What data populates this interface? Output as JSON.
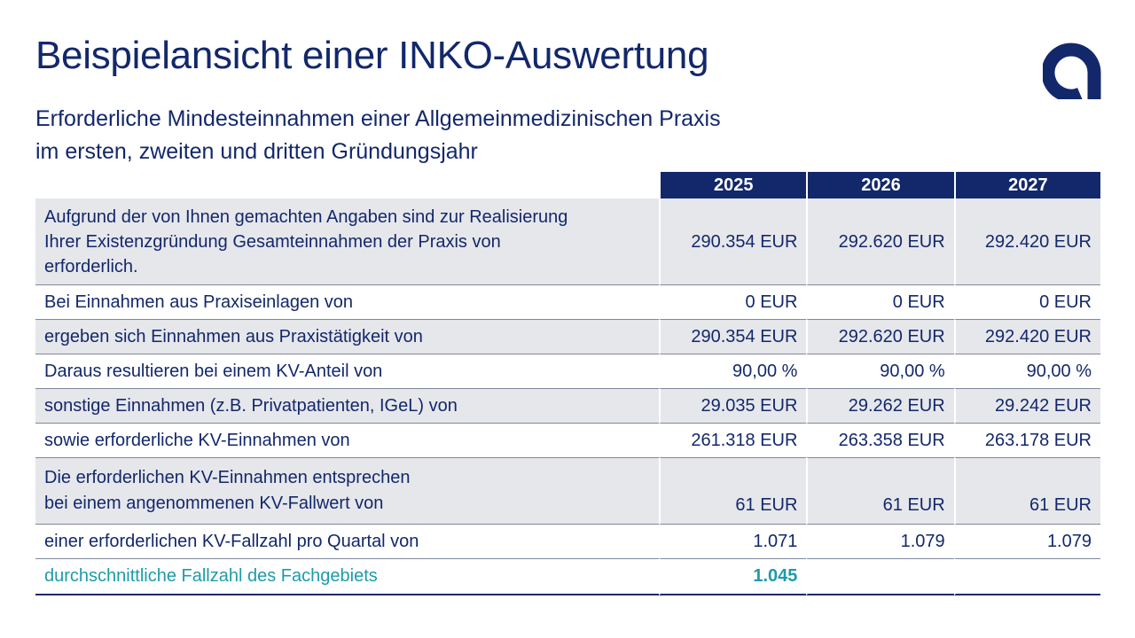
{
  "header": {
    "title": "Beispielansicht einer INKO-Auswertung",
    "logo_icon": "brand-a-logo-icon",
    "brand_color": "#13286b"
  },
  "subtitle": {
    "line1": "Erforderliche Mindesteinnahmen einer Allgemeinmedizinischen Praxis",
    "line2": "im ersten, zweiten und dritten Gründungsjahr"
  },
  "table": {
    "years": [
      "2025",
      "2026",
      "2027"
    ],
    "rows": [
      {
        "label_lines": [
          "Aufgrund der von Ihnen gemachten Angaben sind zur Realisierung",
          "Ihrer Existenzgründung Gesamteinnahmen der Praxis von",
          "erforderlich."
        ],
        "values": [
          "290.354 EUR",
          "292.620 EUR",
          "292.420 EUR"
        ]
      },
      {
        "label": "Bei Einnahmen aus Praxiseinlagen von",
        "values": [
          "0 EUR",
          "0 EUR",
          "0 EUR"
        ]
      },
      {
        "label": "ergeben sich Einnahmen aus Praxistätigkeit von",
        "values": [
          "290.354 EUR",
          "292.620 EUR",
          "292.420 EUR"
        ]
      },
      {
        "label": "Daraus resultieren bei einem KV-Anteil von",
        "values": [
          "90,00 %",
          "90,00 %",
          "90,00 %"
        ]
      },
      {
        "label": "sonstige Einnahmen (z.B. Privatpatienten, IGeL) von",
        "values": [
          "29.035 EUR",
          "29.262 EUR",
          "29.242 EUR"
        ]
      },
      {
        "label": "sowie erforderliche KV-Einnahmen von",
        "values": [
          "261.318 EUR",
          "263.358 EUR",
          "263.178 EUR"
        ]
      },
      {
        "label_lines": [
          "Die erforderlichen KV-Einnahmen entsprechen",
          "bei einem angenommenen KV-Fallwert von"
        ],
        "values": [
          "61 EUR",
          "61 EUR",
          "61 EUR"
        ]
      },
      {
        "label": "einer erforderlichen KV-Fallzahl pro Quartal von",
        "values": [
          "1.071",
          "1.079",
          "1.079"
        ]
      },
      {
        "label": "durchschnittliche Fallzahl des Fachgebiets",
        "values": [
          "1.045"
        ]
      }
    ],
    "highlight_color": "#1d9bab",
    "shade_color": "#e6e7eb"
  }
}
